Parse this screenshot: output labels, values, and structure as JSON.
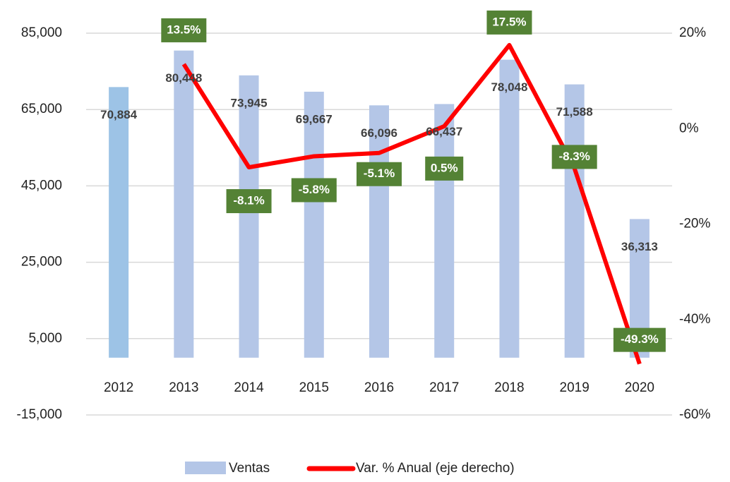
{
  "chart_data": {
    "type": "bar",
    "categories": [
      "2012",
      "2013",
      "2014",
      "2015",
      "2016",
      "2017",
      "2018",
      "2019",
      "2020"
    ],
    "series": [
      {
        "name": "Ventas",
        "type": "bar",
        "colors": [
          "#9dc3e6",
          "#b4c6e7",
          "#b4c6e7",
          "#b4c6e7",
          "#b4c6e7",
          "#b4c6e7",
          "#b4c6e7",
          "#b4c6e7",
          "#b4c6e7"
        ],
        "values": [
          70884,
          80448,
          73945,
          69667,
          66096,
          66437,
          78048,
          71588,
          36313
        ],
        "value_labels": [
          "70,884",
          "80,448",
          "73,945",
          "69,667",
          "66,096",
          "66,437",
          "78,048",
          "71,588",
          "36,313"
        ]
      },
      {
        "name": "Var. % Anual (eje derecho)",
        "type": "line",
        "axis": "y2",
        "color": "#ff0000",
        "label_color": "#548235",
        "values": [
          null,
          13.5,
          -8.1,
          -5.8,
          -5.1,
          0.5,
          17.5,
          -8.3,
          -49.3
        ],
        "value_labels": [
          null,
          "13.5%",
          "-8.1%",
          "-5.8%",
          "-5.1%",
          "0.5%",
          "17.5%",
          "-8.3%",
          "-49.3%"
        ]
      }
    ],
    "ylim": [
      -15000,
      85000
    ],
    "yticks": [
      {
        "value": -15000,
        "label": "-15,000"
      },
      {
        "value": 5000,
        "label": "5,000"
      },
      {
        "value": 25000,
        "label": "25,000"
      },
      {
        "value": 45000,
        "label": "45,000"
      },
      {
        "value": 65000,
        "label": "65,000"
      },
      {
        "value": 85000,
        "label": "85,000"
      }
    ],
    "y2lim": [
      -60,
      20
    ],
    "y2ticks": [
      {
        "value": -60,
        "label": "-60%"
      },
      {
        "value": -40,
        "label": "-40%"
      },
      {
        "value": -20,
        "label": "-20%"
      },
      {
        "value": 0,
        "label": "0%"
      },
      {
        "value": 20,
        "label": "20%"
      }
    ],
    "grid": true
  }
}
